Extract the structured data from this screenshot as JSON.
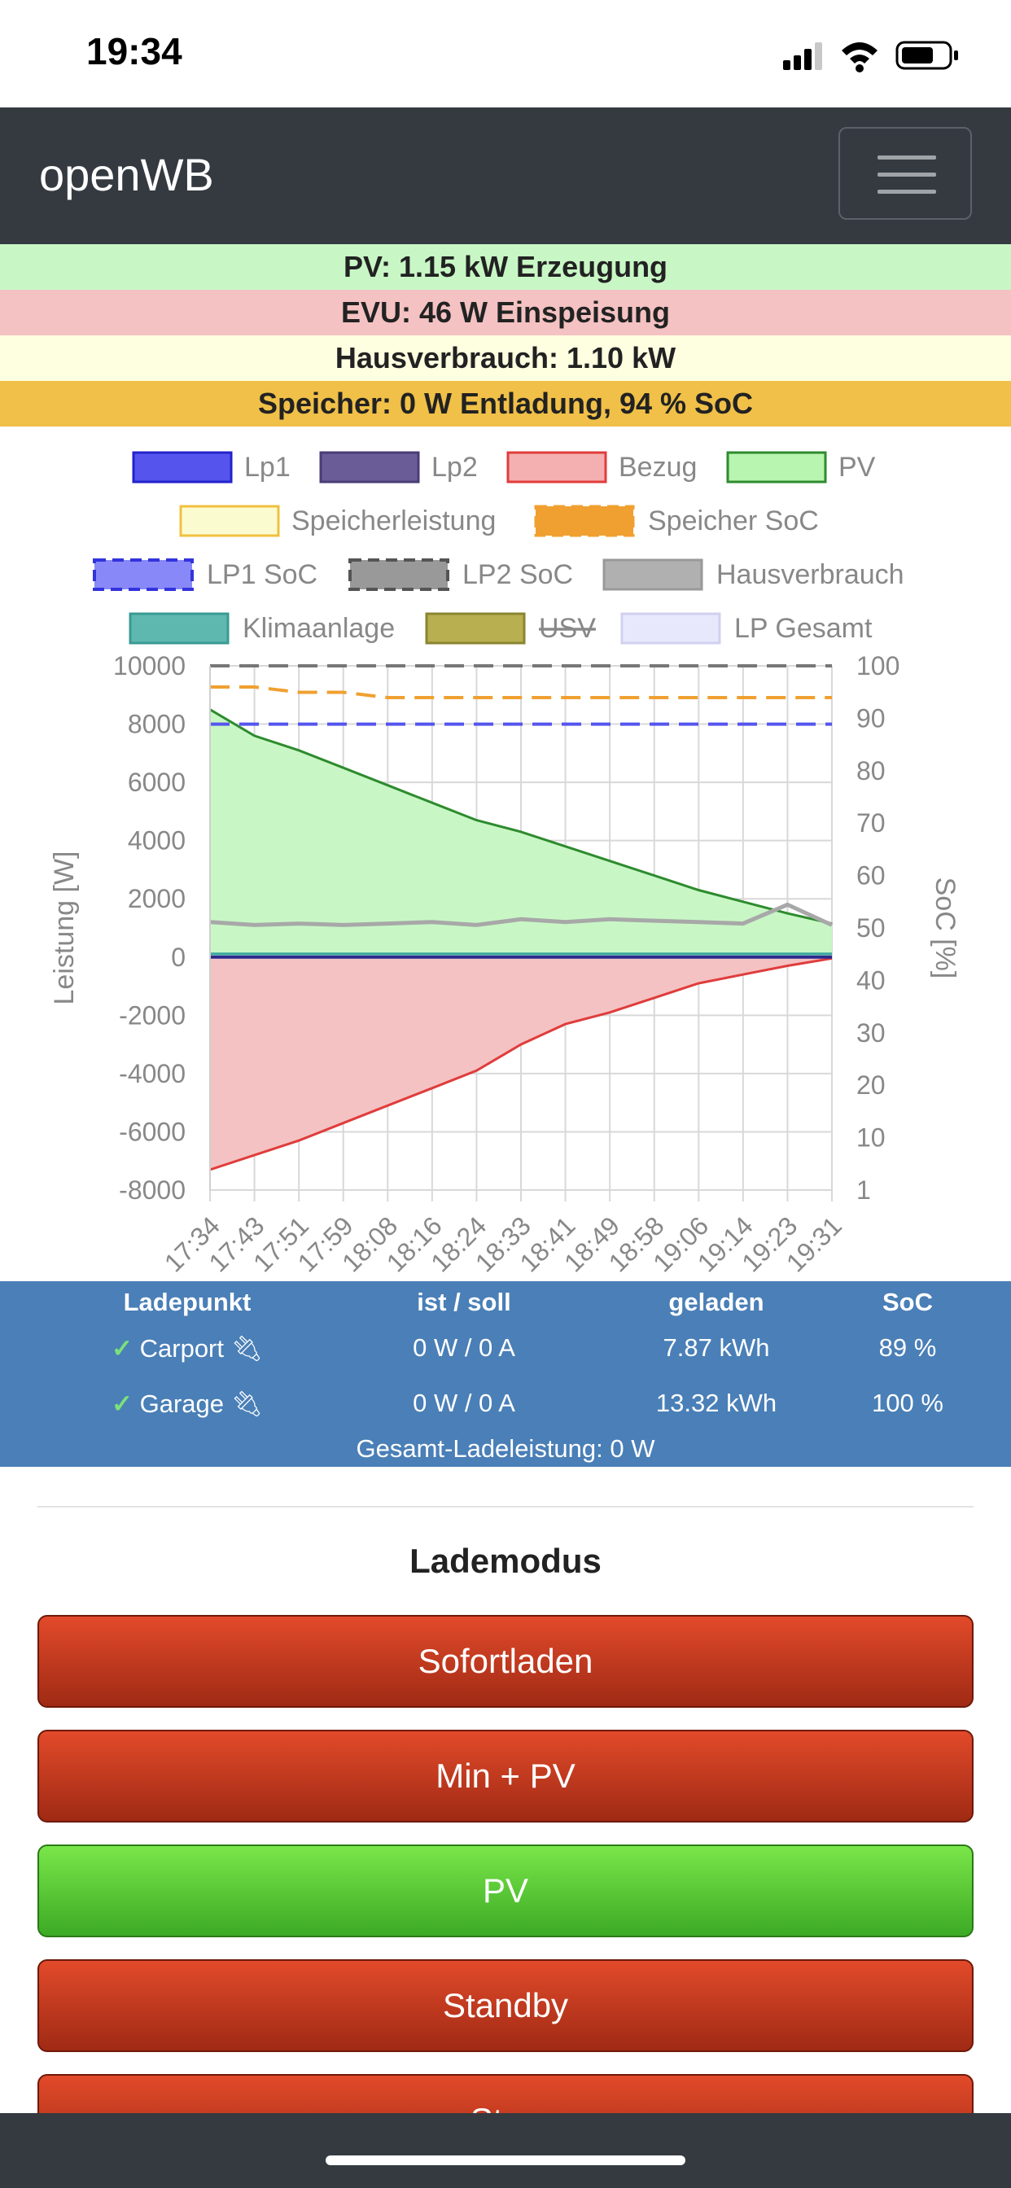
{
  "status": {
    "time": "19:34"
  },
  "app": {
    "brand": "openWB"
  },
  "banners": {
    "pv": "PV: 1.15 kW Erzeugung",
    "evu": "EVU: 46 W Einspeisung",
    "haus": "Hausverbrauch: 1.10 kW",
    "speicher": "Speicher: 0 W Entladung, 94 % SoC"
  },
  "legend": {
    "lp1": "Lp1",
    "lp2": "Lp2",
    "bezug": "Bezug",
    "pv": "PV",
    "speicherleistung": "Speicherleistung",
    "speicher_soc": "Speicher SoC",
    "lp1_soc": "LP1 SoC",
    "lp2_soc": "LP2 SoC",
    "hausverbrauch": "Hausverbrauch",
    "klimaanlage": "Klimaanlage",
    "usv": "USV",
    "lp_gesamt": "LP Gesamt"
  },
  "chart_data": {
    "type": "area",
    "xlabel": "",
    "ylabel": "Leistung [W]",
    "y2label": "SoC [%]",
    "ylim": [
      -8000,
      10000
    ],
    "y2ticks": [
      "100",
      "90",
      "80",
      "70",
      "60",
      "50",
      "40",
      "30",
      "20",
      "10",
      "1"
    ],
    "yticks": [
      "10000",
      "8000",
      "6000",
      "4000",
      "2000",
      "0",
      "-2000",
      "-4000",
      "-6000",
      "-8000"
    ],
    "categories": [
      "17:34",
      "17:43",
      "17:51",
      "17:59",
      "18:08",
      "18:16",
      "18:24",
      "18:33",
      "18:41",
      "18:49",
      "18:58",
      "19:06",
      "19:14",
      "19:23",
      "19:31"
    ],
    "series": [
      {
        "name": "PV",
        "color": "#2e8b2e",
        "values": [
          8500,
          7600,
          7100,
          6500,
          5900,
          5300,
          4700,
          4300,
          3800,
          3300,
          2800,
          2300,
          1900,
          1500,
          1150
        ]
      },
      {
        "name": "Bezug",
        "color": "#e03c3c",
        "values": [
          -7300,
          -6800,
          -6300,
          -5700,
          -5100,
          -4500,
          -3900,
          -3000,
          -2300,
          -1900,
          -1400,
          -900,
          -600,
          -300,
          -46
        ]
      },
      {
        "name": "Hausverbrauch",
        "color": "#a8a8a8",
        "values": [
          1200,
          1100,
          1150,
          1100,
          1150,
          1200,
          1100,
          1300,
          1200,
          1300,
          1250,
          1200,
          1150,
          1800,
          1100
        ]
      },
      {
        "name": "LP1 SoC",
        "color": "#5555ee",
        "values": [
          89,
          89,
          89,
          89,
          89,
          89,
          89,
          89,
          89,
          89,
          89,
          89,
          89,
          89,
          89
        ]
      },
      {
        "name": "LP2 SoC",
        "color": "#777777",
        "values": [
          100,
          100,
          100,
          100,
          100,
          100,
          100,
          100,
          100,
          100,
          100,
          100,
          100,
          100,
          100
        ]
      },
      {
        "name": "Speicher SoC",
        "color": "#f0a030",
        "values": [
          96,
          96,
          95,
          95,
          94,
          94,
          94,
          94,
          94,
          94,
          94,
          94,
          94,
          94,
          94
        ]
      }
    ]
  },
  "lp_table": {
    "headers": [
      "Ladepunkt",
      "ist / soll",
      "geladen",
      "SoC"
    ],
    "rows": [
      {
        "name": "Carport",
        "power": "0 W / 0 A",
        "charged": "7.87 kWh",
        "soc": "89 %"
      },
      {
        "name": "Garage",
        "power": "0 W / 0 A",
        "charged": "13.32 kWh",
        "soc": "100 %"
      }
    ],
    "total": "Gesamt-Ladeleistung: 0 W"
  },
  "lademodus": {
    "title": "Lademodus",
    "buttons": [
      "Sofortladen",
      "Min + PV",
      "PV",
      "Standby",
      "Stop"
    ],
    "active": "PV"
  },
  "colors": {
    "navbar": "#343a40",
    "pv_banner": "#c8f7c5",
    "evu_banner": "#f4c2c2",
    "haus_banner": "#fefee0",
    "speicher_banner": "#f0c048",
    "table_bg": "#4a7fb7"
  }
}
